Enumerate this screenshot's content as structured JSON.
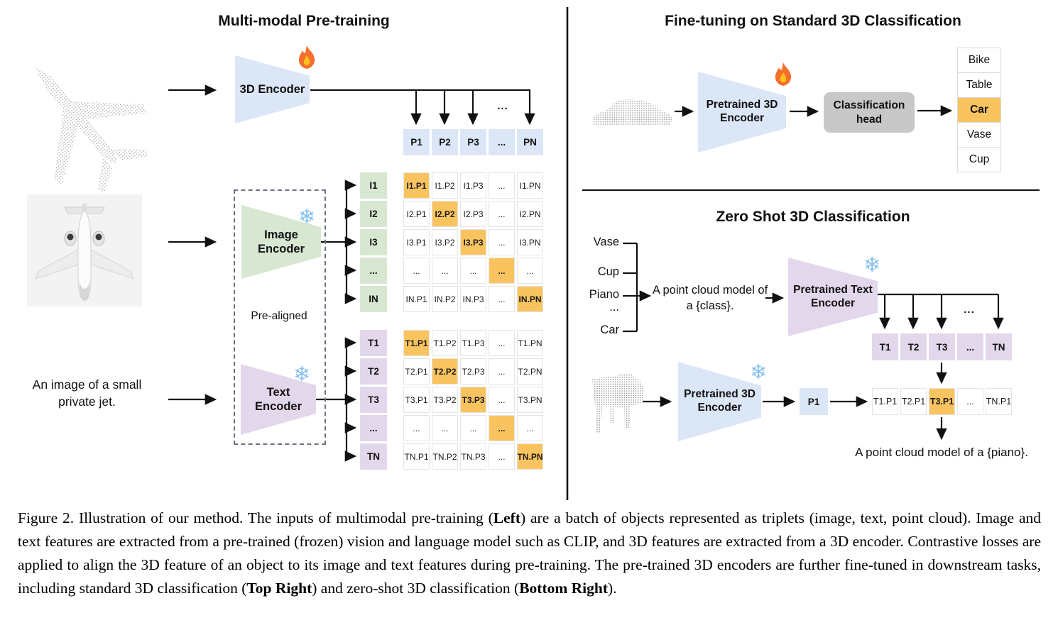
{
  "colors": {
    "encoder_blue": "#dbe6f7",
    "encoder_green": "#d7e7d1",
    "encoder_purple": "#e2d7eb",
    "highlight_orange": "#f9c45f",
    "head_gray": "#c8c8c8",
    "line_black": "#111111"
  },
  "icons": {
    "trainable": "flame-icon",
    "frozen": "snowflake-icon",
    "snowflake_glyph": "❄"
  },
  "pretraining": {
    "title": "Multi-modal Pre-training",
    "encoder_3d_label": "3D Encoder",
    "image_encoder_line1": "Image",
    "image_encoder_line2": "Encoder",
    "text_encoder_line1": "Text",
    "text_encoder_line2": "Encoder",
    "prealigned": "Pre-aligned",
    "input_text_line1": "An image of a small",
    "input_text_line2": "private jet.",
    "branch_dots": "...",
    "p_row": [
      "P1",
      "P2",
      "P3",
      "...",
      "PN"
    ],
    "i_labels": [
      "I1",
      "I2",
      "I3",
      "...",
      "IN"
    ],
    "t_labels": [
      "T1",
      "T2",
      "T3",
      "...",
      "TN"
    ],
    "i_matrix": [
      [
        {
          "v": "I1.P1",
          "hl": true
        },
        {
          "v": "I1.P2"
        },
        {
          "v": "I1.P3"
        },
        {
          "v": "..."
        },
        {
          "v": "I1.PN"
        }
      ],
      [
        {
          "v": "I2.P1"
        },
        {
          "v": "I2.P2",
          "hl": true
        },
        {
          "v": "I2.P3"
        },
        {
          "v": "..."
        },
        {
          "v": "I2.PN"
        }
      ],
      [
        {
          "v": "I3.P1"
        },
        {
          "v": "I3.P2"
        },
        {
          "v": "I3.P3",
          "hl": true
        },
        {
          "v": "..."
        },
        {
          "v": "I3.PN"
        }
      ],
      [
        {
          "v": "..."
        },
        {
          "v": "..."
        },
        {
          "v": "..."
        },
        {
          "v": "...",
          "hl": true
        },
        {
          "v": "..."
        }
      ],
      [
        {
          "v": "IN.P1"
        },
        {
          "v": "IN.P2"
        },
        {
          "v": "IN.P3"
        },
        {
          "v": "..."
        },
        {
          "v": "IN.PN",
          "hl": true
        }
      ]
    ],
    "t_matrix": [
      [
        {
          "v": "T1.P1",
          "hl": true
        },
        {
          "v": "T1.P2"
        },
        {
          "v": "T1.P3"
        },
        {
          "v": "..."
        },
        {
          "v": "T1.PN"
        }
      ],
      [
        {
          "v": "T2.P1"
        },
        {
          "v": "T2.P2",
          "hl": true
        },
        {
          "v": "T2.P3"
        },
        {
          "v": "..."
        },
        {
          "v": "T2.PN"
        }
      ],
      [
        {
          "v": "T3.P1"
        },
        {
          "v": "T3.P2"
        },
        {
          "v": "T3.P3",
          "hl": true
        },
        {
          "v": "..."
        },
        {
          "v": "T3.PN"
        }
      ],
      [
        {
          "v": "..."
        },
        {
          "v": "..."
        },
        {
          "v": "..."
        },
        {
          "v": "...",
          "hl": true
        },
        {
          "v": "..."
        }
      ],
      [
        {
          "v": "TN.P1"
        },
        {
          "v": "TN.P2"
        },
        {
          "v": "TN.P3"
        },
        {
          "v": "..."
        },
        {
          "v": "TN.PN",
          "hl": true
        }
      ]
    ]
  },
  "finetune": {
    "title": "Fine-tuning on Standard 3D Classification",
    "encoder_line1": "Pretrained 3D",
    "encoder_line2": "Encoder",
    "head_line1": "Classification",
    "head_line2": "head",
    "classes": [
      {
        "v": "Bike"
      },
      {
        "v": "Table"
      },
      {
        "v": "Car",
        "hl": true
      },
      {
        "v": "Vase"
      },
      {
        "v": "Cup"
      }
    ]
  },
  "zeroshot": {
    "title": "Zero Shot 3D Classification",
    "candidates": [
      "Vase",
      "Cup",
      "Piano",
      "...",
      "Car"
    ],
    "prompt_line1": "A point cloud model of",
    "prompt_line2": "a {class}.",
    "text_encoder_line1": "Pretrained Text",
    "text_encoder_line2": "Encoder",
    "encoder_line1": "Pretrained 3D",
    "encoder_line2": "Encoder",
    "p1": "P1",
    "branch_dots": "...",
    "t_row": [
      "T1",
      "T2",
      "T3",
      "...",
      "TN"
    ],
    "sim_row": [
      {
        "v": "T1.P1"
      },
      {
        "v": "T2.P1"
      },
      {
        "v": "T3.P1",
        "hl": true
      },
      {
        "v": "..."
      },
      {
        "v": "TN.P1"
      }
    ],
    "result": "A point cloud model of a {piano}."
  },
  "caption": {
    "segments": [
      {
        "text": "Figure 2. Illustration of our method. The inputs of multimodal pre-training (",
        "bold": false
      },
      {
        "text": "Left",
        "bold": true
      },
      {
        "text": ") are a batch of objects represented as triplets (image, text, point cloud). Image and text features are extracted from a pre-trained (frozen) vision and language model such as CLIP, and 3D features are extracted from a 3D encoder. Contrastive losses are applied to align the 3D feature of an object to its image and text features during pre-training. The pre-trained 3D encoders are further fine-tuned in downstream tasks, including standard 3D classification (",
        "bold": false
      },
      {
        "text": "Top Right",
        "bold": true
      },
      {
        "text": ") and zero-shot 3D classification (",
        "bold": false
      },
      {
        "text": "Bottom Right",
        "bold": true
      },
      {
        "text": ").",
        "bold": false
      }
    ]
  }
}
